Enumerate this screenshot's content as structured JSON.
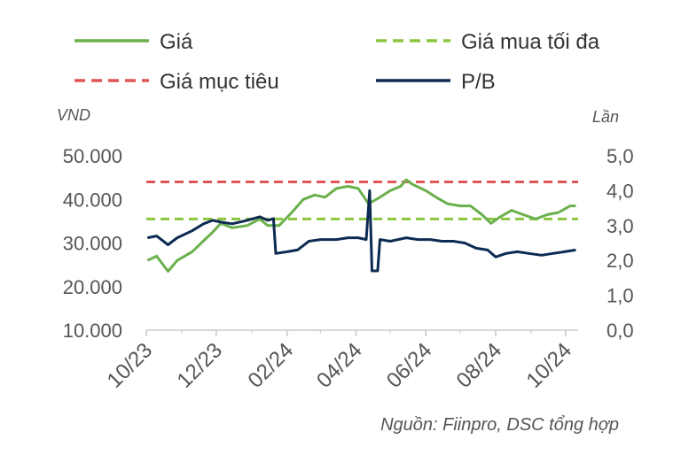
{
  "chart_data": {
    "type": "line",
    "legend": {
      "gia": "Giá",
      "gia_mua_toi_da": "Giá mua tối đa",
      "gia_muc_tieu": "Giá mục tiêu",
      "pb": "P/B"
    },
    "left_axis_unit": "VND",
    "right_axis_unit": "Lần",
    "left_ticks": [
      "10.000",
      "20.000",
      "30.000",
      "40.000",
      "50.000"
    ],
    "left_tick_values": [
      10000,
      20000,
      30000,
      40000,
      50000
    ],
    "right_ticks": [
      "0,0",
      "1,0",
      "2,0",
      "3,0",
      "4,0",
      "5,0"
    ],
    "right_tick_values": [
      0,
      1,
      2,
      3,
      4,
      5
    ],
    "x_ticks": [
      "10/23",
      "12/23",
      "02/24",
      "04/24",
      "06/24",
      "08/24",
      "10/24"
    ],
    "left_ylim": [
      10000,
      50000
    ],
    "right_ylim": [
      0,
      5
    ],
    "x_range": [
      "2023-10",
      "2024-10"
    ],
    "source": "Nguồn: Fiinpro, DSC tổng hợp",
    "colors": {
      "gia": "#6ab04c",
      "gia_mua_toi_da": "#8cc63f",
      "gia_muc_tieu": "#e05555",
      "pb": "#0d2b52",
      "axis": "#c8c8c8",
      "text": "#555555"
    },
    "gia_muc_tieu_value": 44000,
    "gia_mua_toi_da_value": 35500,
    "series": [
      {
        "name": "Giá",
        "axis": "left",
        "points": [
          [
            "2023-10-02",
            26000
          ],
          [
            "2023-10-10",
            27000
          ],
          [
            "2023-10-20",
            23500
          ],
          [
            "2023-10-28",
            26000
          ],
          [
            "2023-11-10",
            28000
          ],
          [
            "2023-11-20",
            30500
          ],
          [
            "2023-11-28",
            32500
          ],
          [
            "2023-12-05",
            34500
          ],
          [
            "2023-12-15",
            33500
          ],
          [
            "2023-12-28",
            34000
          ],
          [
            "2024-01-08",
            35500
          ],
          [
            "2024-01-15",
            34000
          ],
          [
            "2024-01-25",
            34000
          ],
          [
            "2024-02-05",
            37000
          ],
          [
            "2024-02-15",
            40000
          ],
          [
            "2024-02-25",
            41000
          ],
          [
            "2024-03-05",
            40500
          ],
          [
            "2024-03-15",
            42500
          ],
          [
            "2024-03-25",
            43000
          ],
          [
            "2024-04-03",
            42500
          ],
          [
            "2024-04-12",
            39000
          ],
          [
            "2024-04-22",
            40500
          ],
          [
            "2024-05-01",
            42000
          ],
          [
            "2024-05-10",
            43000
          ],
          [
            "2024-05-15",
            44500
          ],
          [
            "2024-05-20",
            43500
          ],
          [
            "2024-06-01",
            42000
          ],
          [
            "2024-06-10",
            40500
          ],
          [
            "2024-06-20",
            39000
          ],
          [
            "2024-07-01",
            38500
          ],
          [
            "2024-07-10",
            38500
          ],
          [
            "2024-07-20",
            36500
          ],
          [
            "2024-07-28",
            34500
          ],
          [
            "2024-08-05",
            36000
          ],
          [
            "2024-08-15",
            37500
          ],
          [
            "2024-08-25",
            36500
          ],
          [
            "2024-09-05",
            35500
          ],
          [
            "2024-09-15",
            36500
          ],
          [
            "2024-09-25",
            37000
          ],
          [
            "2024-10-05",
            38500
          ],
          [
            "2024-10-10",
            38500
          ]
        ]
      },
      {
        "name": "P/B",
        "axis": "right",
        "points": [
          [
            "2023-10-02",
            2.65
          ],
          [
            "2023-10-10",
            2.7
          ],
          [
            "2023-10-20",
            2.45
          ],
          [
            "2023-10-28",
            2.65
          ],
          [
            "2023-11-10",
            2.85
          ],
          [
            "2023-11-20",
            3.05
          ],
          [
            "2023-11-28",
            3.15
          ],
          [
            "2023-12-05",
            3.1
          ],
          [
            "2023-12-15",
            3.05
          ],
          [
            "2023-12-28",
            3.15
          ],
          [
            "2024-01-08",
            3.25
          ],
          [
            "2024-01-15",
            3.15
          ],
          [
            "2024-01-20",
            3.2
          ],
          [
            "2024-01-22",
            2.2
          ],
          [
            "2024-02-01",
            2.25
          ],
          [
            "2024-02-10",
            2.3
          ],
          [
            "2024-02-20",
            2.55
          ],
          [
            "2024-03-01",
            2.6
          ],
          [
            "2024-03-15",
            2.6
          ],
          [
            "2024-03-25",
            2.65
          ],
          [
            "2024-04-03",
            2.65
          ],
          [
            "2024-04-10",
            2.6
          ],
          [
            "2024-04-13",
            4.0
          ],
          [
            "2024-04-15",
            1.7
          ],
          [
            "2024-04-20",
            1.7
          ],
          [
            "2024-04-22",
            2.6
          ],
          [
            "2024-05-01",
            2.55
          ],
          [
            "2024-05-15",
            2.65
          ],
          [
            "2024-05-25",
            2.6
          ],
          [
            "2024-06-05",
            2.6
          ],
          [
            "2024-06-15",
            2.55
          ],
          [
            "2024-06-25",
            2.55
          ],
          [
            "2024-07-05",
            2.5
          ],
          [
            "2024-07-15",
            2.35
          ],
          [
            "2024-07-25",
            2.3
          ],
          [
            "2024-08-01",
            2.1
          ],
          [
            "2024-08-10",
            2.2
          ],
          [
            "2024-08-20",
            2.25
          ],
          [
            "2024-08-30",
            2.2
          ],
          [
            "2024-09-10",
            2.15
          ],
          [
            "2024-09-20",
            2.2
          ],
          [
            "2024-09-30",
            2.25
          ],
          [
            "2024-10-10",
            2.3
          ]
        ]
      }
    ]
  }
}
